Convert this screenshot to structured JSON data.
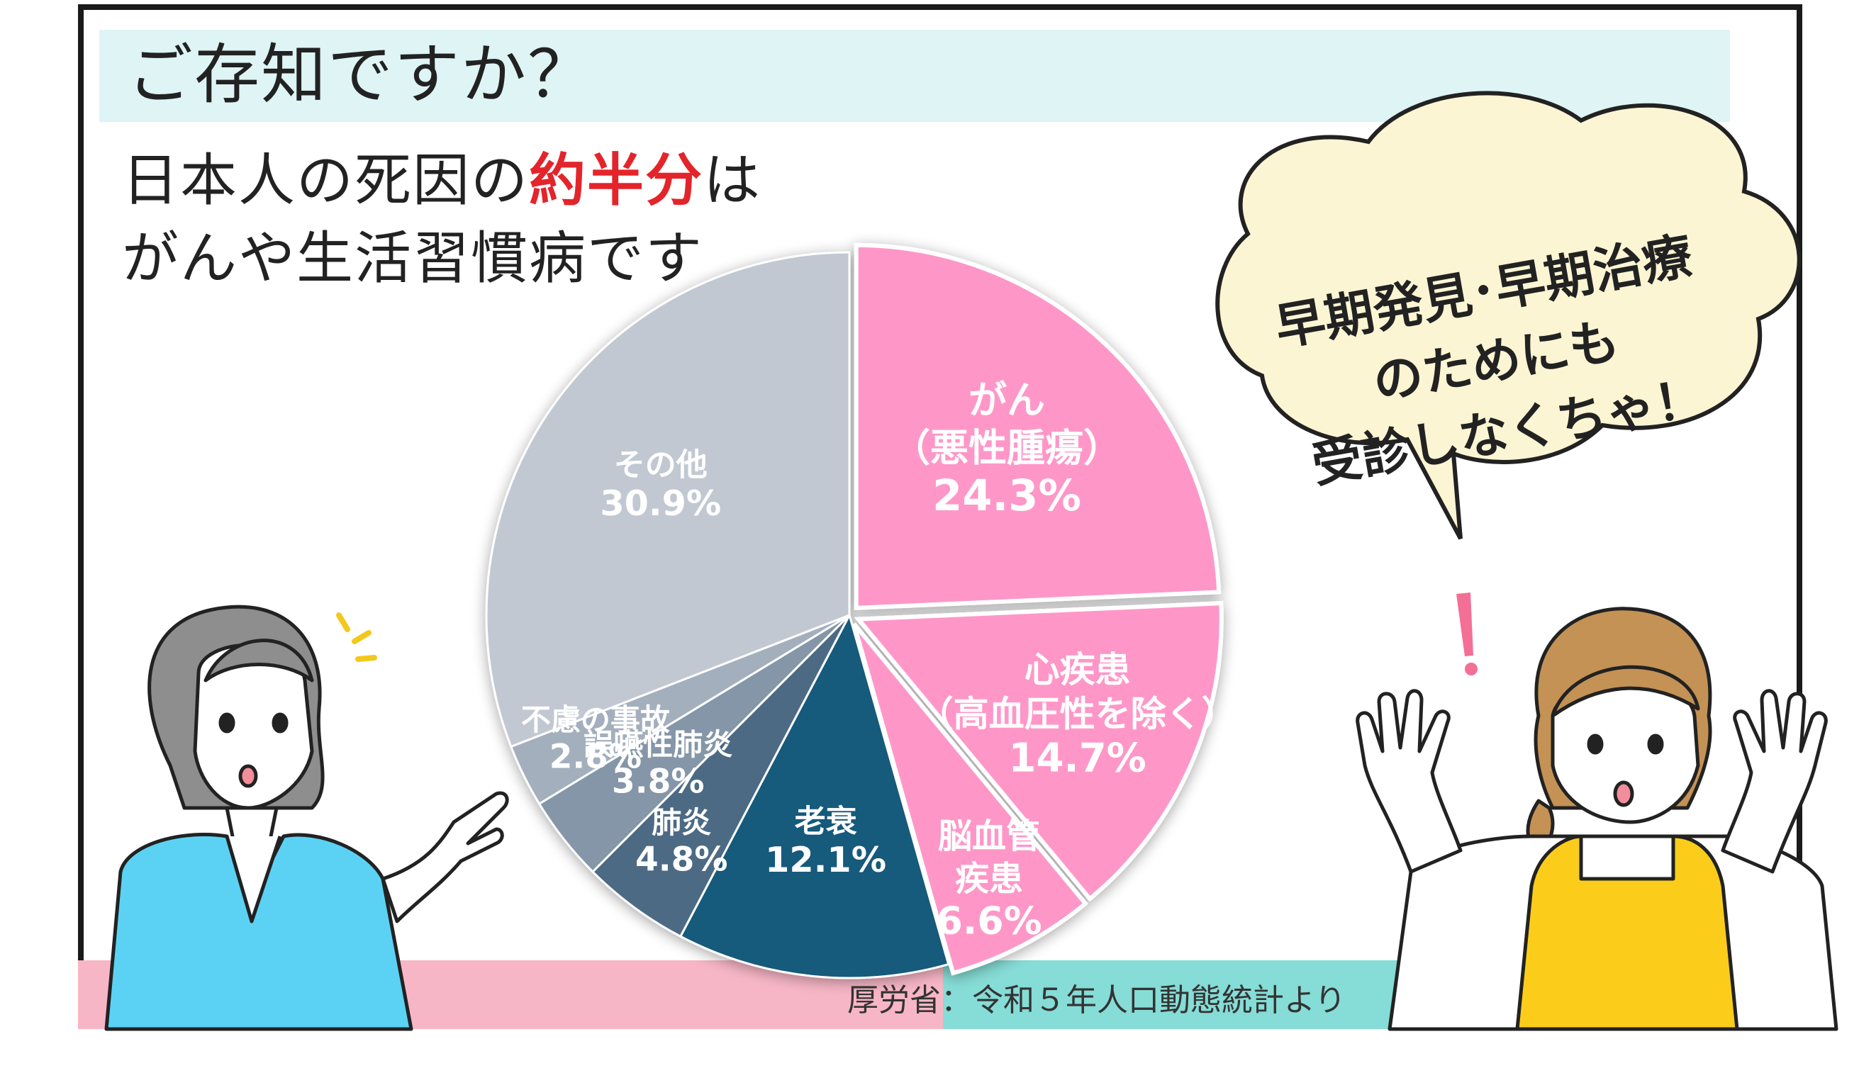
{
  "banner": {
    "text": "ご存知ですか？"
  },
  "headline": {
    "line1_pre": "日本人の死因の",
    "line1_highlight": "約半分",
    "line1_post": "は",
    "line2": "がんや生活習慣病です"
  },
  "speech_bubble": {
    "lines": [
      "早期発見･早期治療",
      "のためにも",
      "受診しなくちゃ！"
    ]
  },
  "source": "厚労省：令和５年人口動態統計より",
  "colors": {
    "pink": "#fe97c8",
    "navy": "#175a7c",
    "slate": "#4e6a85",
    "gray_blue": "#8496a8",
    "light_gray": "#c2c8d2",
    "highlight_red": "#e4242b"
  },
  "chart_data": {
    "type": "pie",
    "unit": "%",
    "slices": [
      {
        "label_lines": [
          "がん",
          "（悪性腫瘍）"
        ],
        "value": 24.3,
        "value_text": "24.3%",
        "color": "#fe97c8",
        "exploded": true
      },
      {
        "label_lines": [
          "心疾患",
          "（高血圧性を除く）"
        ],
        "value": 14.7,
        "value_text": "14.7%",
        "color": "#fe97c8",
        "exploded": true
      },
      {
        "label_lines": [
          "脳血管",
          "疾患"
        ],
        "value": 6.6,
        "value_text": "6.6%",
        "color": "#fe97c8",
        "exploded": true
      },
      {
        "label_lines": [
          "老衰"
        ],
        "value": 12.1,
        "value_text": "12.1%",
        "color": "#175a7c",
        "exploded": false
      },
      {
        "label_lines": [
          "肺炎"
        ],
        "value": 4.8,
        "value_text": "4.8%",
        "color": "#4e6a85",
        "exploded": false
      },
      {
        "label_lines": [
          "誤嚥性肺炎"
        ],
        "value": 3.8,
        "value_text": "3.8%",
        "color": "#8496a8",
        "exploded": false
      },
      {
        "label_lines": [
          "不慮の事故"
        ],
        "value": 2.8,
        "value_text": "2.8%",
        "color": "#a4afbd",
        "exploded": false
      },
      {
        "label_lines": [
          "その他"
        ],
        "value": 30.9,
        "value_text": "30.9%",
        "color": "#c2c8d2",
        "exploded": false
      }
    ]
  }
}
